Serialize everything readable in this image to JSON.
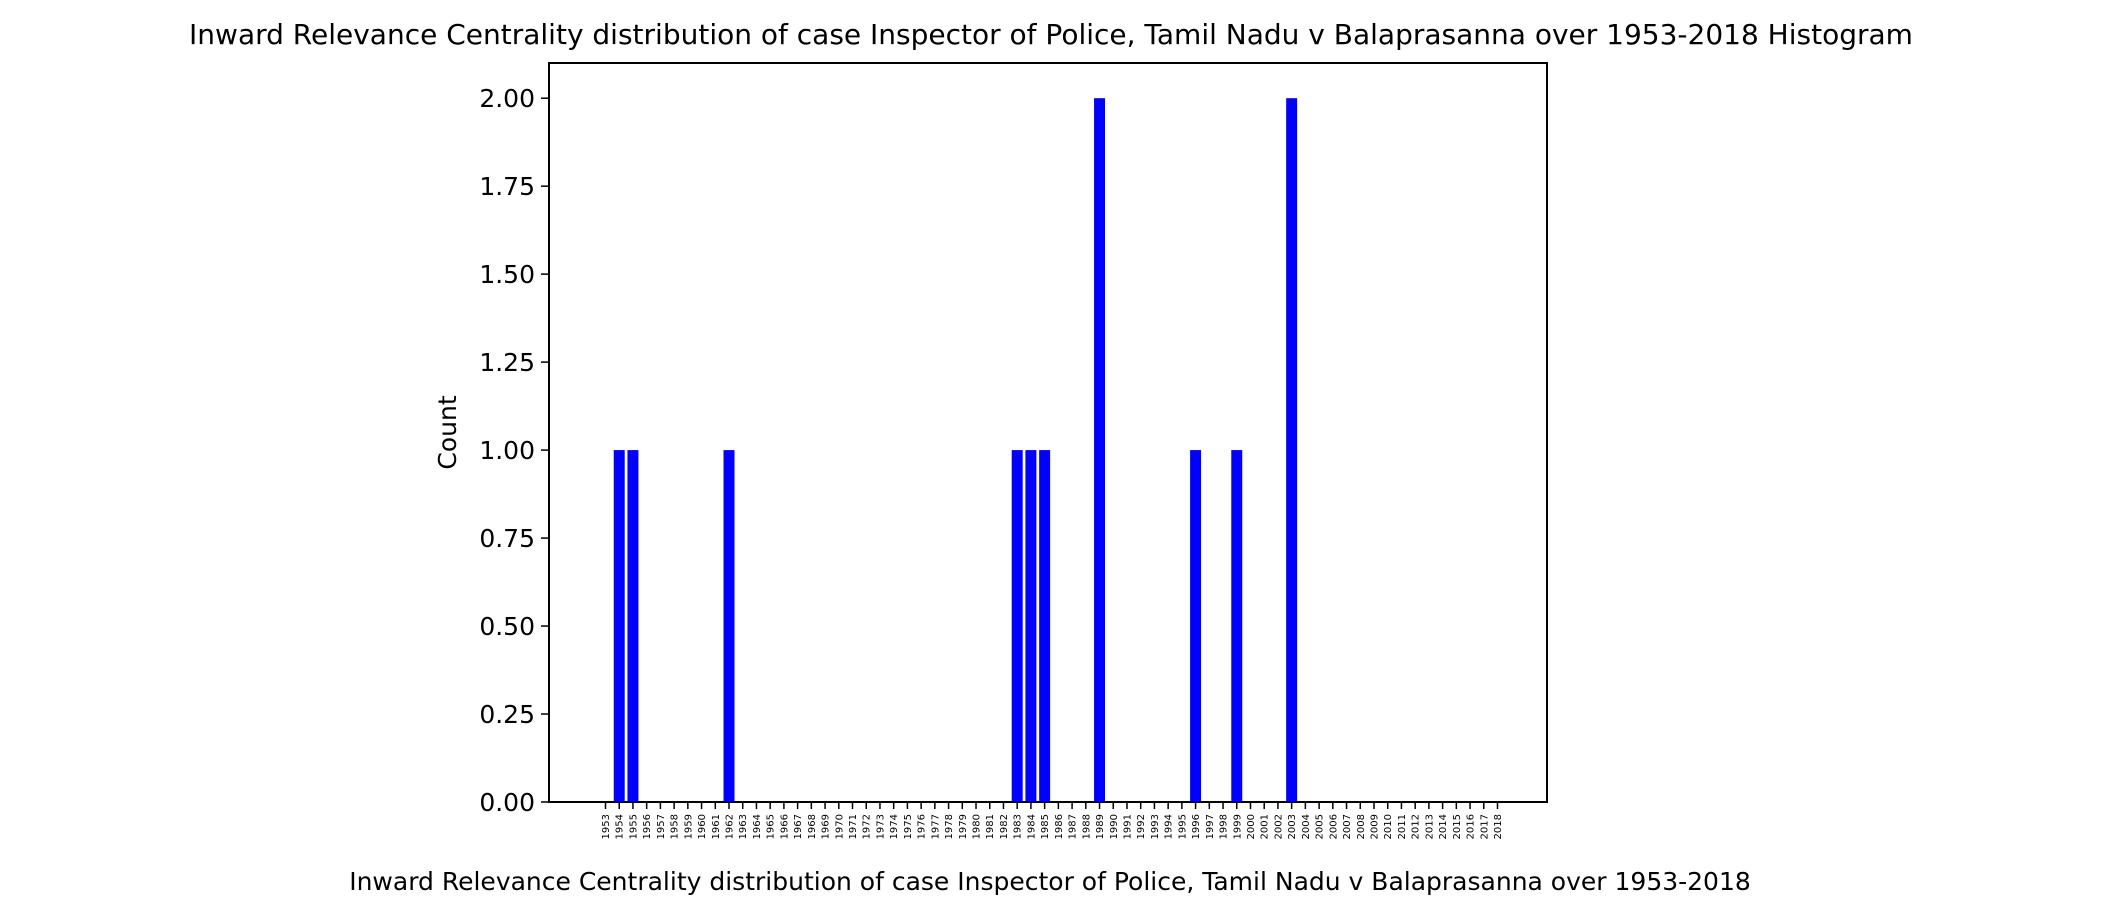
{
  "chart_data": {
    "type": "bar",
    "title": "Inward Relevance Centrality distribution of case Inspector of Police, Tamil Nadu v Balaprasanna over 1953-2018 Histogram",
    "xlabel": "Inward Relevance Centrality distribution of case Inspector of Police, Tamil Nadu v Balaprasanna over 1953-2018",
    "ylabel": "Count",
    "ylim": [
      0,
      2.1
    ],
    "yticks": [
      "0.00",
      "0.25",
      "0.50",
      "0.75",
      "1.00",
      "1.25",
      "1.50",
      "1.75",
      "2.00"
    ],
    "categories": [
      "1953",
      "1954",
      "1955",
      "1956",
      "1957",
      "1958",
      "1959",
      "1960",
      "1961",
      "1962",
      "1963",
      "1964",
      "1965",
      "1966",
      "1967",
      "1968",
      "1969",
      "1970",
      "1971",
      "1972",
      "1973",
      "1974",
      "1975",
      "1976",
      "1977",
      "1978",
      "1979",
      "1980",
      "1981",
      "1982",
      "1983",
      "1984",
      "1985",
      "1986",
      "1987",
      "1988",
      "1989",
      "1990",
      "1991",
      "1992",
      "1993",
      "1994",
      "1995",
      "1996",
      "1997",
      "1998",
      "1999",
      "2000",
      "2001",
      "2002",
      "2003",
      "2004",
      "2005",
      "2006",
      "2007",
      "2008",
      "2009",
      "2010",
      "2011",
      "2012",
      "2013",
      "2014",
      "2015",
      "2016",
      "2017",
      "2018"
    ],
    "values": [
      0,
      1,
      1,
      0,
      0,
      0,
      0,
      0,
      0,
      1,
      0,
      0,
      0,
      0,
      0,
      0,
      0,
      0,
      0,
      0,
      0,
      0,
      0,
      0,
      0,
      0,
      0,
      0,
      0,
      0,
      1,
      1,
      1,
      0,
      0,
      0,
      2,
      0,
      0,
      0,
      0,
      0,
      0,
      1,
      0,
      0,
      1,
      0,
      0,
      0,
      2,
      0,
      0,
      0,
      0,
      0,
      0,
      0,
      0,
      0,
      0,
      0,
      0,
      0,
      0,
      0
    ],
    "bar_color": "#0000ff",
    "grid": false
  }
}
